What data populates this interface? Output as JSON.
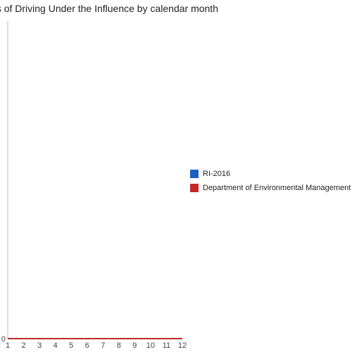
{
  "chart_data": {
    "type": "line",
    "title": "Instances of Driving Under the Influence by calendar month",
    "x": [
      1,
      2,
      3,
      4,
      5,
      6,
      7,
      8,
      9,
      10,
      11,
      12
    ],
    "x_tick_labels": [
      "1",
      "2",
      "3",
      "4",
      "5",
      "6",
      "7",
      "8",
      "9",
      "10",
      "11",
      "12"
    ],
    "y_ticks": [
      0
    ],
    "y_tick_labels": [
      "0"
    ],
    "xlim": [
      1,
      12
    ],
    "ylim": [
      0,
      1
    ],
    "grid": false,
    "legend_position": "right",
    "series": [
      {
        "name": "RI-2016",
        "color": "#1c5fbf",
        "values": [
          0,
          0,
          0,
          0,
          0,
          0,
          0,
          0,
          0,
          0,
          0,
          0
        ]
      },
      {
        "name": "Department of Environmental Management",
        "color": "#c62828",
        "values": [
          0,
          0,
          0,
          0,
          0,
          0,
          0,
          0,
          0,
          0,
          0,
          0
        ]
      }
    ]
  }
}
